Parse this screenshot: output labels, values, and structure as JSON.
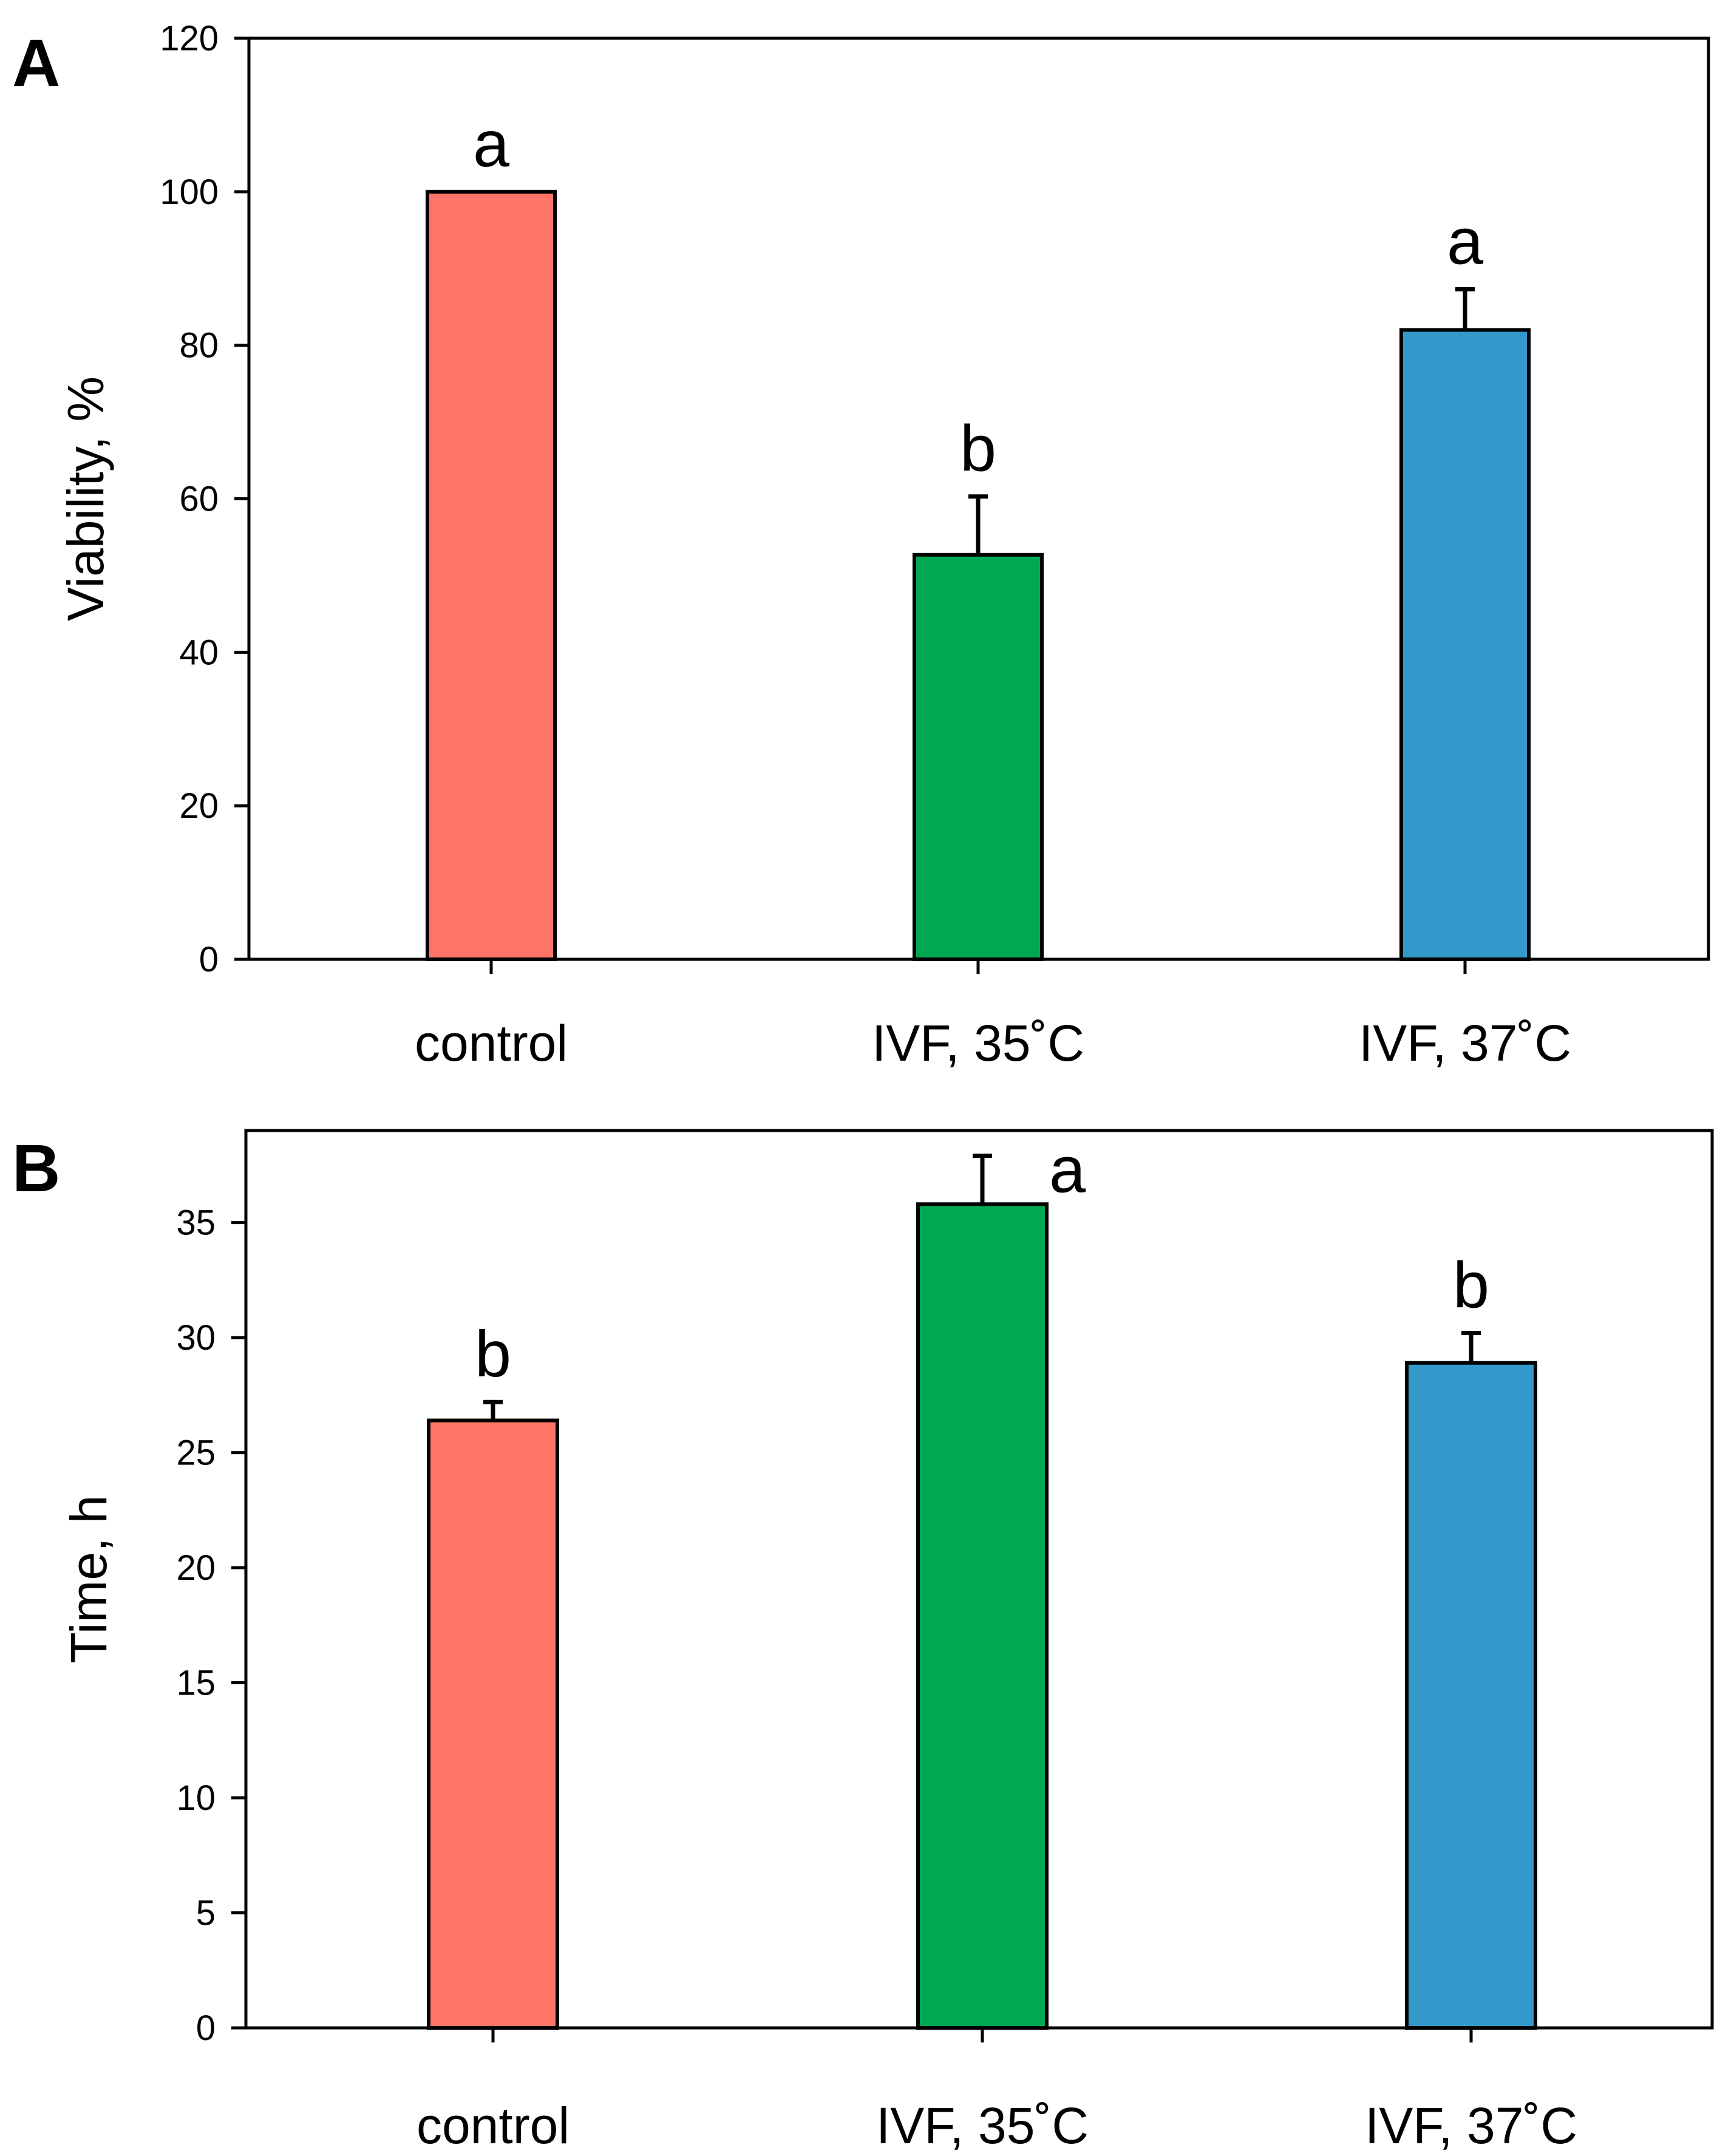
{
  "colors": {
    "control": "#ff7468",
    "ivf35": "#00a854",
    "ivf37": "#3498ca"
  },
  "chart_data": [
    {
      "panel": "A",
      "type": "bar",
      "categories": [
        "control",
        "IVF, 35˚C",
        "IVF, 37˚C"
      ],
      "values": [
        100,
        52.7,
        82
      ],
      "errors": [
        0,
        7.6,
        5.3
      ],
      "significance": [
        "a",
        "b",
        "a"
      ],
      "title": "",
      "xlabel": "",
      "ylabel": "Viability, %",
      "ylim": [
        0,
        120
      ],
      "yticks": [
        0,
        20,
        40,
        60,
        80,
        100,
        120
      ],
      "grid": false,
      "legend": "none"
    },
    {
      "panel": "B",
      "type": "bar",
      "categories": [
        "control",
        "IVF, 35˚C",
        "IVF, 37˚C"
      ],
      "values": [
        26.4,
        35.8,
        28.9
      ],
      "errors": [
        0.8,
        2.1,
        1.3
      ],
      "significance": [
        "b",
        "a",
        "b"
      ],
      "title": "",
      "xlabel": "",
      "ylabel": "Time, h",
      "ylim": [
        0,
        39
      ],
      "yticks": [
        0,
        5,
        10,
        15,
        20,
        25,
        30,
        35
      ],
      "grid": false,
      "legend": "none"
    }
  ]
}
